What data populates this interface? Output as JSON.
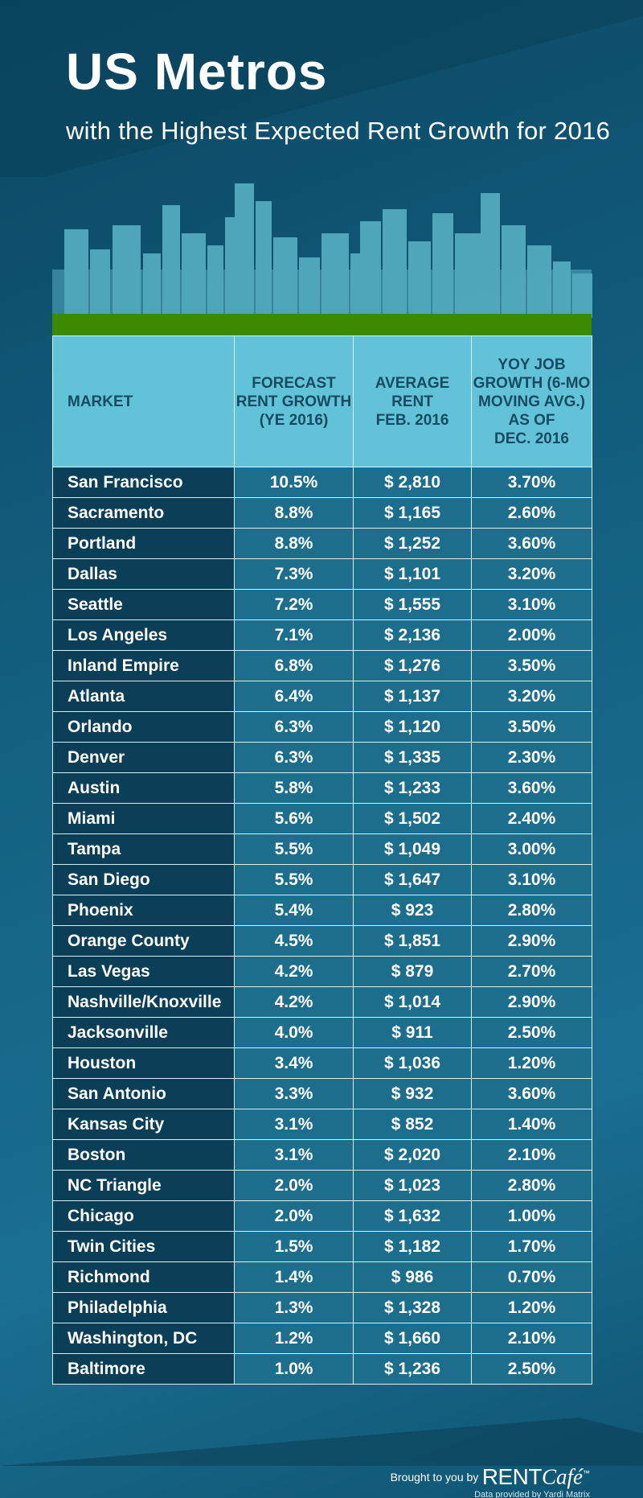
{
  "header": {
    "title": "US Metros",
    "subtitle": "with the Highest Expected Rent Growth for 2016"
  },
  "table": {
    "columns": [
      [
        "MARKET"
      ],
      [
        "FORECAST",
        "RENT GROWTH",
        "(YE 2016)"
      ],
      [
        "AVERAGE",
        "RENT",
        "FEB. 2016"
      ],
      [
        "YOY JOB",
        "GROWTH (6-MO",
        "MOVING AVG.)",
        "AS OF",
        "DEC. 2016"
      ]
    ],
    "rows": [
      [
        "San Francisco",
        "10.5%",
        "$ 2,810",
        "3.70%"
      ],
      [
        "Sacramento",
        "8.8%",
        "$ 1,165",
        "2.60%"
      ],
      [
        "Portland",
        "8.8%",
        "$ 1,252",
        "3.60%"
      ],
      [
        "Dallas",
        "7.3%",
        "$ 1,101",
        "3.20%"
      ],
      [
        "Seattle",
        "7.2%",
        "$ 1,555",
        "3.10%"
      ],
      [
        "Los Angeles",
        "7.1%",
        "$ 2,136",
        "2.00%"
      ],
      [
        "Inland Empire",
        "6.8%",
        "$ 1,276",
        "3.50%"
      ],
      [
        "Atlanta",
        "6.4%",
        "$ 1,137",
        "3.20%"
      ],
      [
        "Orlando",
        "6.3%",
        "$ 1,120",
        "3.50%"
      ],
      [
        "Denver",
        "6.3%",
        "$ 1,335",
        "2.30%"
      ],
      [
        "Austin",
        "5.8%",
        "$ 1,233",
        "3.60%"
      ],
      [
        "Miami",
        "5.6%",
        "$ 1,502",
        "2.40%"
      ],
      [
        "Tampa",
        "5.5%",
        "$ 1,049",
        "3.00%"
      ],
      [
        "San Diego",
        "5.5%",
        "$ 1,647",
        "3.10%"
      ],
      [
        "Phoenix",
        "5.4%",
        "$ 923",
        "2.80%"
      ],
      [
        "Orange County",
        "4.5%",
        "$ 1,851",
        "2.90%"
      ],
      [
        "Las Vegas",
        "4.2%",
        "$ 879",
        "2.70%"
      ],
      [
        "Nashville/Knoxville",
        "4.2%",
        "$ 1,014",
        "2.90%"
      ],
      [
        "Jacksonville",
        "4.0%",
        "$ 911",
        "2.50%"
      ],
      [
        "Houston",
        "3.4%",
        "$ 1,036",
        "1.20%"
      ],
      [
        "San Antonio",
        "3.3%",
        "$ 932",
        "3.60%"
      ],
      [
        "Kansas City",
        "3.1%",
        "$ 852",
        "1.40%"
      ],
      [
        "Boston",
        "3.1%",
        "$ 2,020",
        "2.10%"
      ],
      [
        "NC Triangle",
        "2.0%",
        "$ 1,023",
        "2.80%"
      ],
      [
        "Chicago",
        "2.0%",
        "$ 1,632",
        "1.00%"
      ],
      [
        "Twin Cities",
        "1.5%",
        "$ 1,182",
        "1.70%"
      ],
      [
        "Richmond",
        "1.4%",
        "$ 986",
        "0.70%"
      ],
      [
        "Philadelphia",
        "1.3%",
        "$ 1,328",
        "1.20%"
      ],
      [
        "Washington, DC",
        "1.2%",
        "$ 1,660",
        "2.10%"
      ],
      [
        "Baltimore",
        "1.0%",
        "$ 1,236",
        "2.50%"
      ]
    ]
  },
  "footer": {
    "brought_by": "Brought to you by",
    "brand": "RENT",
    "brand_script": "Café",
    "trademark": "™",
    "credit": "Data provided by Yardi Matrix"
  }
}
